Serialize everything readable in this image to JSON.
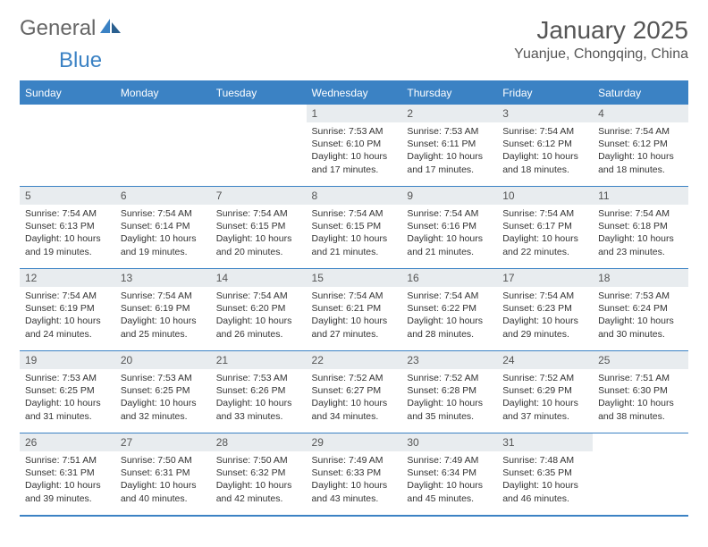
{
  "logo": {
    "text1": "General",
    "text2": "Blue"
  },
  "title": "January 2025",
  "location": "Yuanjue, Chongqing, China",
  "colors": {
    "accent": "#3b82c4",
    "daynum_bg": "#e8ecef",
    "text": "#333333",
    "header_text": "#555555",
    "background": "#ffffff"
  },
  "fonts": {
    "title_size_pt": 21,
    "location_size_pt": 12,
    "weekday_size_pt": 9,
    "daynum_size_pt": 9,
    "body_size_pt": 8
  },
  "weekdays": [
    "Sunday",
    "Monday",
    "Tuesday",
    "Wednesday",
    "Thursday",
    "Friday",
    "Saturday"
  ],
  "grid": [
    [
      null,
      null,
      null,
      {
        "d": "1",
        "sr": "7:53 AM",
        "ss": "6:10 PM",
        "dl": "10 hours and 17 minutes."
      },
      {
        "d": "2",
        "sr": "7:53 AM",
        "ss": "6:11 PM",
        "dl": "10 hours and 17 minutes."
      },
      {
        "d": "3",
        "sr": "7:54 AM",
        "ss": "6:12 PM",
        "dl": "10 hours and 18 minutes."
      },
      {
        "d": "4",
        "sr": "7:54 AM",
        "ss": "6:12 PM",
        "dl": "10 hours and 18 minutes."
      }
    ],
    [
      {
        "d": "5",
        "sr": "7:54 AM",
        "ss": "6:13 PM",
        "dl": "10 hours and 19 minutes."
      },
      {
        "d": "6",
        "sr": "7:54 AM",
        "ss": "6:14 PM",
        "dl": "10 hours and 19 minutes."
      },
      {
        "d": "7",
        "sr": "7:54 AM",
        "ss": "6:15 PM",
        "dl": "10 hours and 20 minutes."
      },
      {
        "d": "8",
        "sr": "7:54 AM",
        "ss": "6:15 PM",
        "dl": "10 hours and 21 minutes."
      },
      {
        "d": "9",
        "sr": "7:54 AM",
        "ss": "6:16 PM",
        "dl": "10 hours and 21 minutes."
      },
      {
        "d": "10",
        "sr": "7:54 AM",
        "ss": "6:17 PM",
        "dl": "10 hours and 22 minutes."
      },
      {
        "d": "11",
        "sr": "7:54 AM",
        "ss": "6:18 PM",
        "dl": "10 hours and 23 minutes."
      }
    ],
    [
      {
        "d": "12",
        "sr": "7:54 AM",
        "ss": "6:19 PM",
        "dl": "10 hours and 24 minutes."
      },
      {
        "d": "13",
        "sr": "7:54 AM",
        "ss": "6:19 PM",
        "dl": "10 hours and 25 minutes."
      },
      {
        "d": "14",
        "sr": "7:54 AM",
        "ss": "6:20 PM",
        "dl": "10 hours and 26 minutes."
      },
      {
        "d": "15",
        "sr": "7:54 AM",
        "ss": "6:21 PM",
        "dl": "10 hours and 27 minutes."
      },
      {
        "d": "16",
        "sr": "7:54 AM",
        "ss": "6:22 PM",
        "dl": "10 hours and 28 minutes."
      },
      {
        "d": "17",
        "sr": "7:54 AM",
        "ss": "6:23 PM",
        "dl": "10 hours and 29 minutes."
      },
      {
        "d": "18",
        "sr": "7:53 AM",
        "ss": "6:24 PM",
        "dl": "10 hours and 30 minutes."
      }
    ],
    [
      {
        "d": "19",
        "sr": "7:53 AM",
        "ss": "6:25 PM",
        "dl": "10 hours and 31 minutes."
      },
      {
        "d": "20",
        "sr": "7:53 AM",
        "ss": "6:25 PM",
        "dl": "10 hours and 32 minutes."
      },
      {
        "d": "21",
        "sr": "7:53 AM",
        "ss": "6:26 PM",
        "dl": "10 hours and 33 minutes."
      },
      {
        "d": "22",
        "sr": "7:52 AM",
        "ss": "6:27 PM",
        "dl": "10 hours and 34 minutes."
      },
      {
        "d": "23",
        "sr": "7:52 AM",
        "ss": "6:28 PM",
        "dl": "10 hours and 35 minutes."
      },
      {
        "d": "24",
        "sr": "7:52 AM",
        "ss": "6:29 PM",
        "dl": "10 hours and 37 minutes."
      },
      {
        "d": "25",
        "sr": "7:51 AM",
        "ss": "6:30 PM",
        "dl": "10 hours and 38 minutes."
      }
    ],
    [
      {
        "d": "26",
        "sr": "7:51 AM",
        "ss": "6:31 PM",
        "dl": "10 hours and 39 minutes."
      },
      {
        "d": "27",
        "sr": "7:50 AM",
        "ss": "6:31 PM",
        "dl": "10 hours and 40 minutes."
      },
      {
        "d": "28",
        "sr": "7:50 AM",
        "ss": "6:32 PM",
        "dl": "10 hours and 42 minutes."
      },
      {
        "d": "29",
        "sr": "7:49 AM",
        "ss": "6:33 PM",
        "dl": "10 hours and 43 minutes."
      },
      {
        "d": "30",
        "sr": "7:49 AM",
        "ss": "6:34 PM",
        "dl": "10 hours and 45 minutes."
      },
      {
        "d": "31",
        "sr": "7:48 AM",
        "ss": "6:35 PM",
        "dl": "10 hours and 46 minutes."
      },
      null
    ]
  ],
  "labels": {
    "sunrise": "Sunrise: ",
    "sunset": "Sunset: ",
    "daylight": "Daylight: "
  }
}
